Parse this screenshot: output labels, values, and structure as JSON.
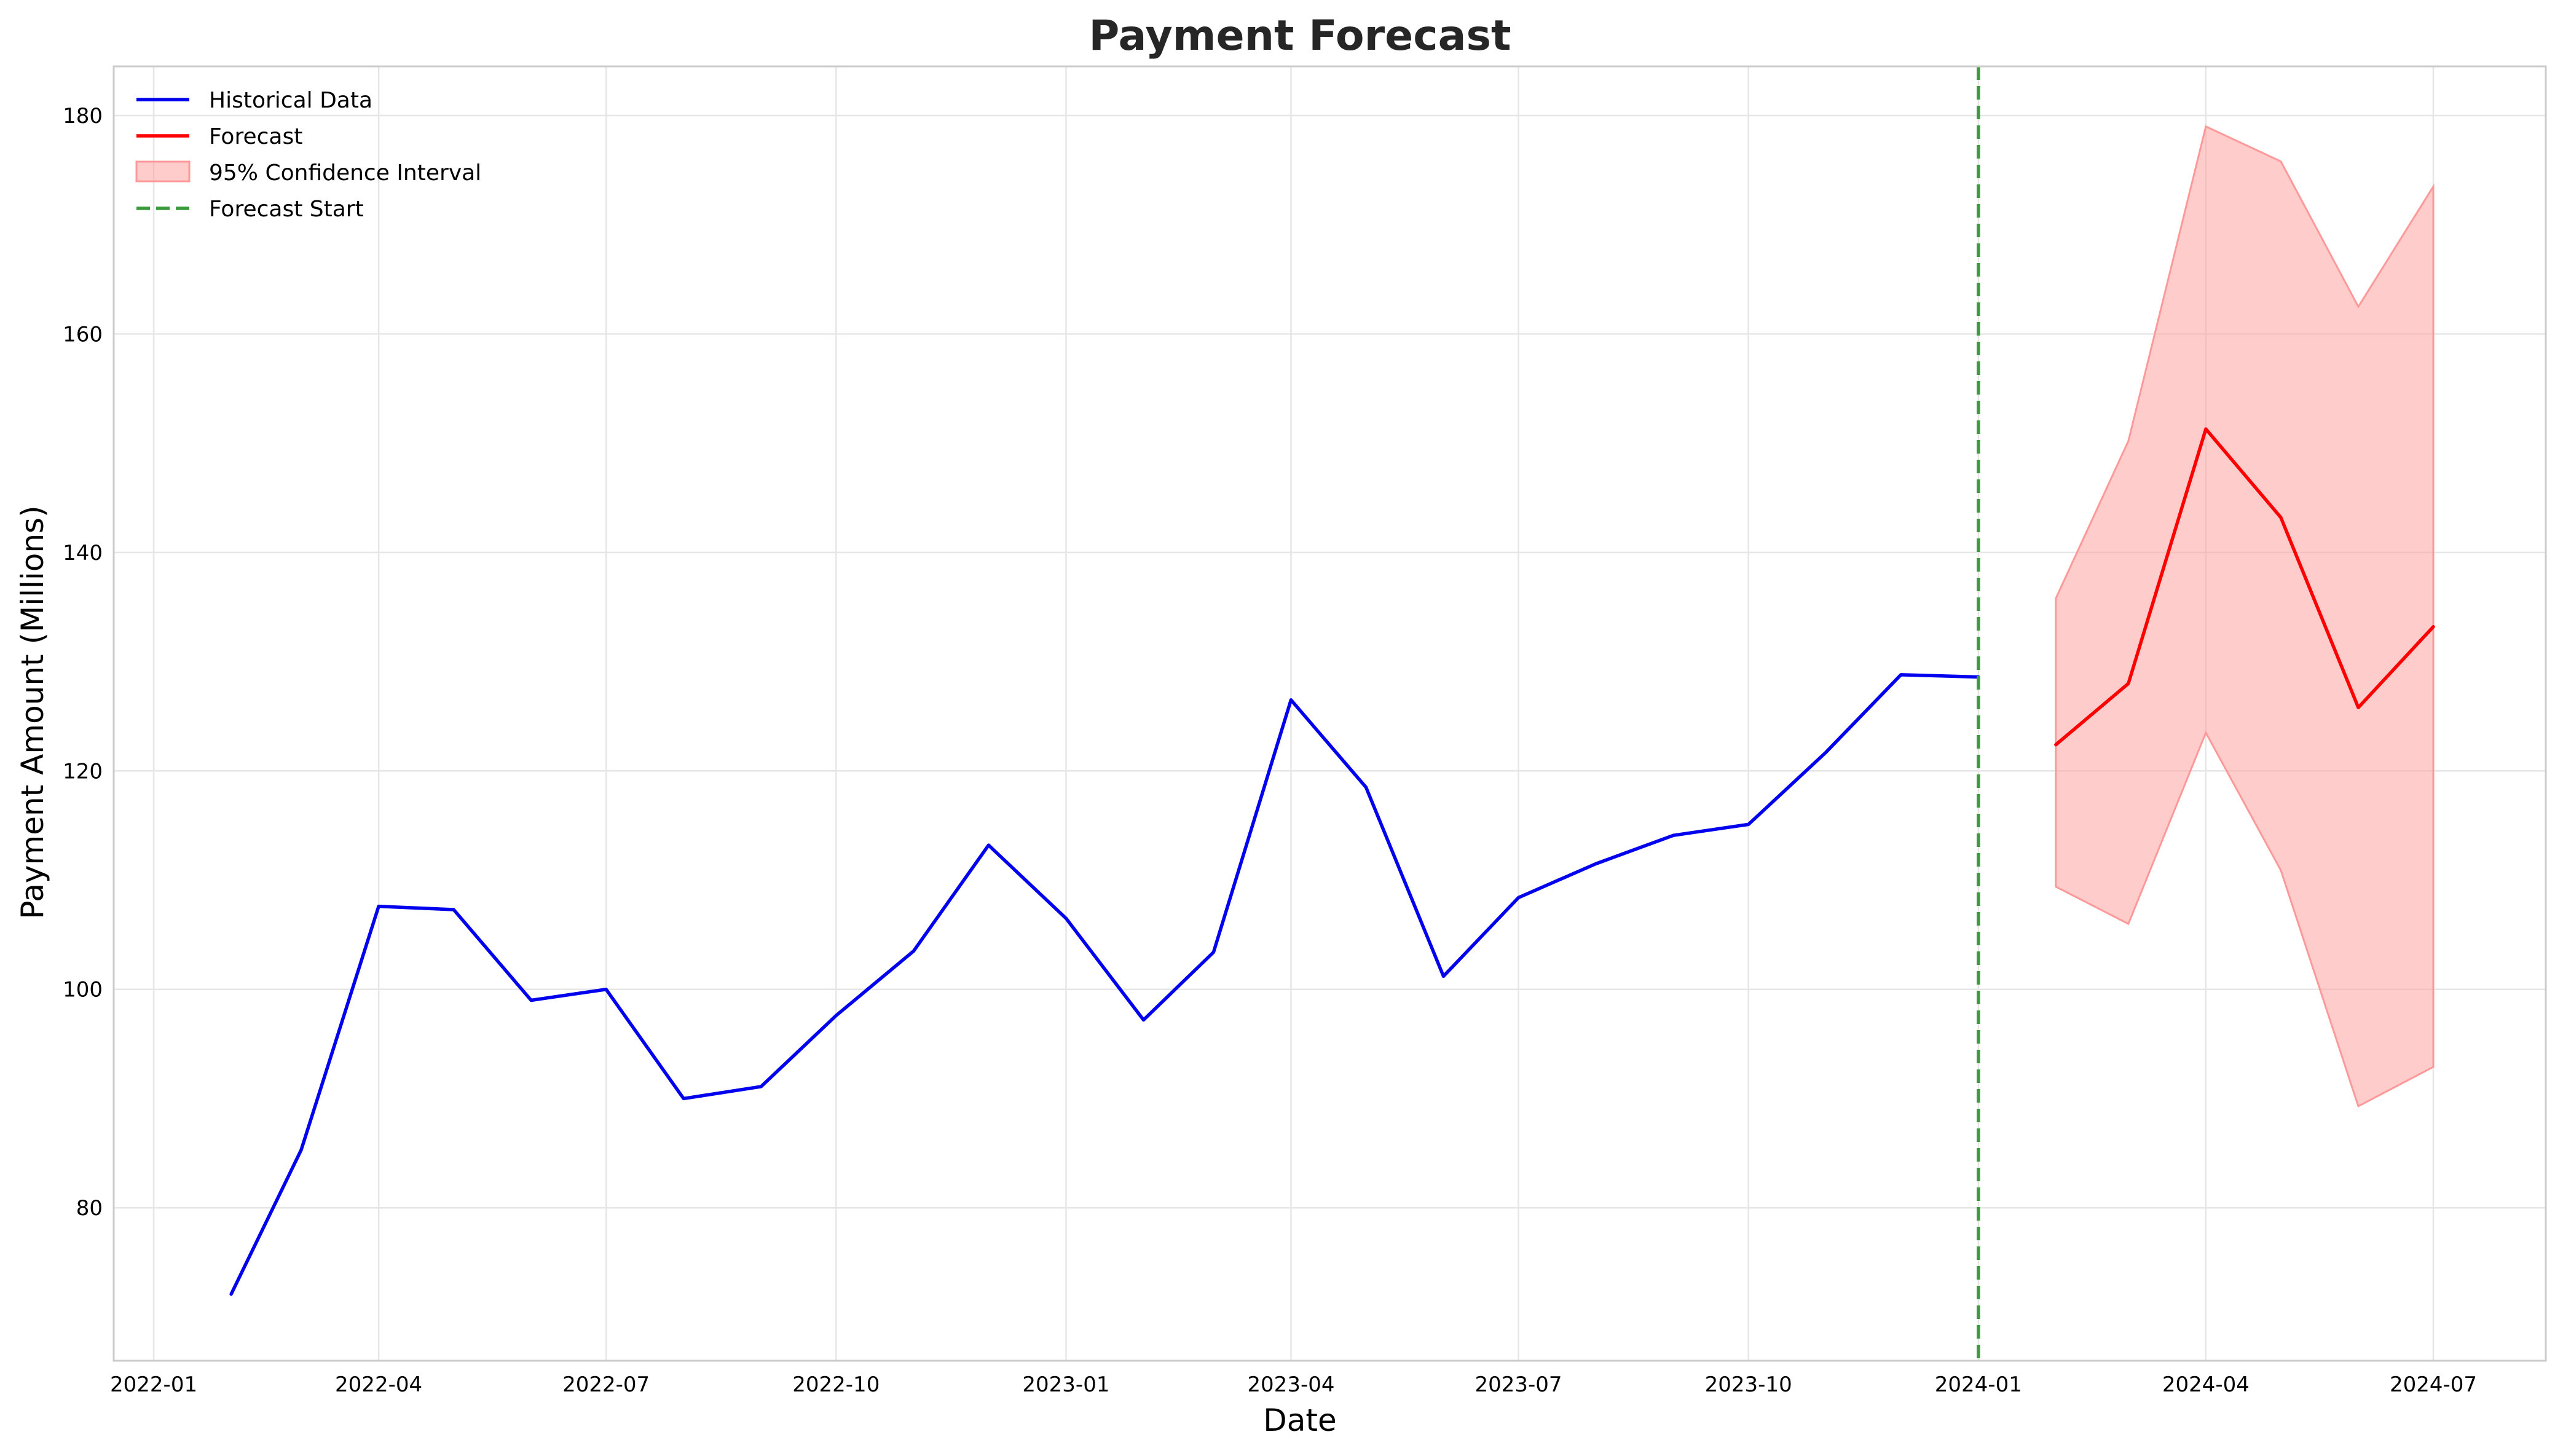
{
  "chart_data": {
    "type": "line",
    "title": "Payment Forecast",
    "xlabel": "Date",
    "ylabel": "Payment Amount (Millions)",
    "x_ticks": [
      "2022-01",
      "2022-04",
      "2022-07",
      "2022-10",
      "2023-01",
      "2023-04",
      "2023-07",
      "2023-10",
      "2024-01",
      "2024-04",
      "2024-07"
    ],
    "y_ticks": [
      80,
      100,
      120,
      140,
      160,
      180
    ],
    "xlim": [
      "2021-12-16",
      "2024-08-15"
    ],
    "ylim": [
      66,
      184.5
    ],
    "grid": true,
    "legend_position": "upper left",
    "legend": [
      "Historical Data",
      "Forecast",
      "95% Confidence Interval",
      "Forecast Start"
    ],
    "series": [
      {
        "name": "Historical Data",
        "color": "#0000ee",
        "points": [
          [
            "2022-02-01",
            72.1
          ],
          [
            "2022-03-01",
            85.3
          ],
          [
            "2022-04-01",
            107.6
          ],
          [
            "2022-05-01",
            107.3
          ],
          [
            "2022-06-01",
            99.0
          ],
          [
            "2022-07-01",
            100.0
          ],
          [
            "2022-08-01",
            90.0
          ],
          [
            "2022-09-01",
            91.1
          ],
          [
            "2022-10-01",
            97.6
          ],
          [
            "2022-11-01",
            103.5
          ],
          [
            "2022-12-01",
            113.2
          ],
          [
            "2023-01-01",
            106.5
          ],
          [
            "2023-02-01",
            97.2
          ],
          [
            "2023-03-01",
            103.4
          ],
          [
            "2023-04-01",
            126.5
          ],
          [
            "2023-05-01",
            118.5
          ],
          [
            "2023-06-01",
            101.2
          ],
          [
            "2023-07-01",
            108.4
          ],
          [
            "2023-08-01",
            111.5
          ],
          [
            "2023-09-01",
            114.1
          ],
          [
            "2023-10-01",
            115.1
          ],
          [
            "2023-11-01",
            121.7
          ],
          [
            "2023-12-01",
            128.8
          ],
          [
            "2024-01-01",
            128.6
          ]
        ]
      },
      {
        "name": "Forecast",
        "color": "#ff0000",
        "points": [
          [
            "2024-02-01",
            122.4
          ],
          [
            "2024-03-01",
            128.0
          ],
          [
            "2024-04-01",
            151.3
          ],
          [
            "2024-05-01",
            143.2
          ],
          [
            "2024-06-01",
            125.8
          ],
          [
            "2024-07-01",
            133.2
          ]
        ]
      }
    ],
    "confidence_interval": {
      "name": "95% Confidence Interval",
      "color": "#ff9999",
      "x": [
        "2024-02-01",
        "2024-03-01",
        "2024-04-01",
        "2024-05-01",
        "2024-06-01",
        "2024-07-01"
      ],
      "lower": [
        109.4,
        106.0,
        123.5,
        110.9,
        89.3,
        92.9
      ],
      "upper": [
        135.8,
        150.2,
        179.0,
        175.8,
        162.5,
        173.5
      ]
    },
    "forecast_start": {
      "name": "Forecast Start",
      "date": "2024-01-01",
      "color": "#3b9b3b"
    }
  }
}
